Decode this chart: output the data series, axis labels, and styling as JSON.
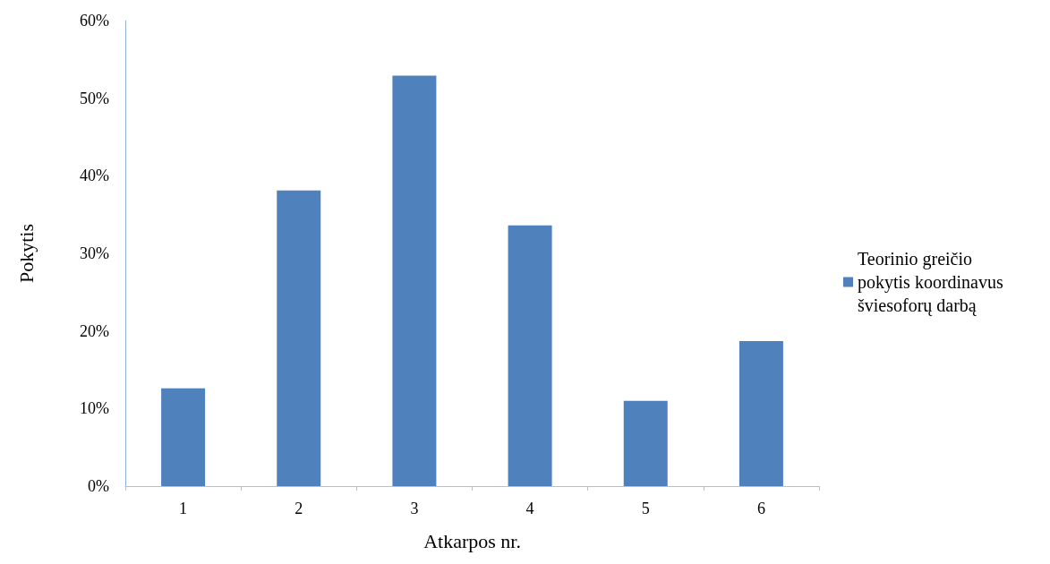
{
  "chart_data": {
    "type": "bar",
    "xlabel": "Atkarpos nr.",
    "ylabel": "Pokytis",
    "categories": [
      "1",
      "2",
      "3",
      "4",
      "5",
      "6"
    ],
    "series": [
      {
        "name": "Teorinio greičio pokytis koordinavus šviesoforų darbą",
        "color": "#4f81bd",
        "values": [
          12.6,
          38.1,
          52.9,
          33.6,
          11.0,
          18.7
        ]
      }
    ],
    "ylim": [
      0,
      60
    ],
    "yticks": [
      {
        "value": 0,
        "label": "0%"
      },
      {
        "value": 10,
        "label": "10%"
      },
      {
        "value": 20,
        "label": "20%"
      },
      {
        "value": 30,
        "label": "30%"
      },
      {
        "value": 40,
        "label": "40%"
      },
      {
        "value": 50,
        "label": "50%"
      },
      {
        "value": 60,
        "label": "60%"
      }
    ],
    "grid": false,
    "legend": "right"
  }
}
